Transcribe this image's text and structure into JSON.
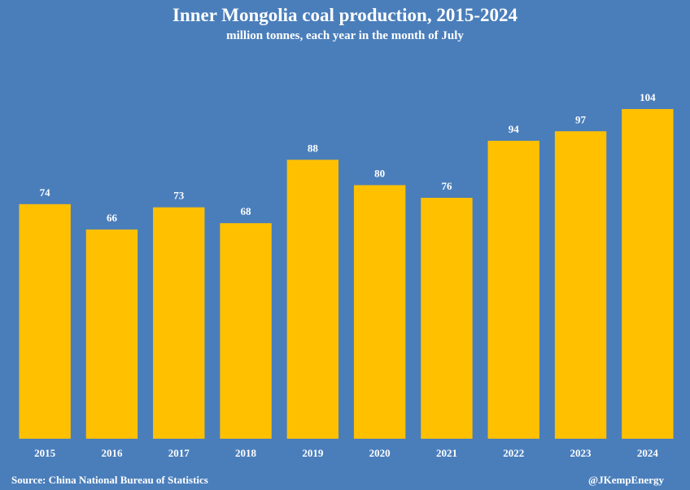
{
  "chart_data": {
    "type": "bar",
    "title": "Inner Mongolia coal production, 2015-2024",
    "subtitle": "million tonnes, each year in the month of  July",
    "categories": [
      "2015",
      "2016",
      "2017",
      "2018",
      "2019",
      "2020",
      "2021",
      "2022",
      "2023",
      "2024"
    ],
    "values": [
      74,
      66,
      73,
      68,
      88,
      80,
      76,
      94,
      97,
      104
    ],
    "data_labels": [
      "74",
      "66",
      "73",
      "68",
      "88",
      "80",
      "76",
      "94",
      "97",
      "104"
    ],
    "bar_color": "#ffc000",
    "background_color": "#4a7ebb",
    "ylim": [
      0,
      104
    ],
    "grid": false,
    "legend": false
  },
  "footer": {
    "source": "Source: China National Bureau of Statistics",
    "credit": "@JKempEnergy"
  }
}
